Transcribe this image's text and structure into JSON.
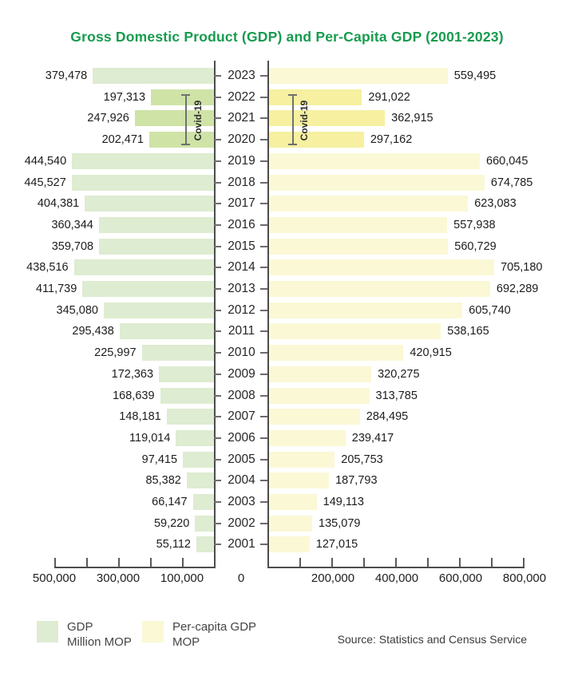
{
  "title": {
    "text": "Gross Domestic Product (GDP) and Per-Capita GDP (2001-2023)",
    "color": "#179b4e"
  },
  "chart_data": {
    "type": "bar",
    "layout_hint": "butterfly / diverging horizontal bars, years on central axis, no grid",
    "categories": [
      2023,
      2022,
      2021,
      2020,
      2019,
      2018,
      2017,
      2016,
      2015,
      2014,
      2013,
      2012,
      2011,
      2010,
      2009,
      2008,
      2007,
      2006,
      2005,
      2004,
      2003,
      2002,
      2001
    ],
    "series": [
      {
        "name": "GDP",
        "unit": "Million MOP",
        "side": "left",
        "color": "#deecd1",
        "covid_color": "#cfe3a7",
        "values": [
          379478,
          197313,
          247926,
          202471,
          444540,
          445527,
          404381,
          360344,
          359708,
          438516,
          411739,
          345080,
          295438,
          225997,
          172363,
          168639,
          148181,
          119014,
          97415,
          85382,
          66147,
          59220,
          55112
        ]
      },
      {
        "name": "Per-capita GDP",
        "unit": "MOP",
        "side": "right",
        "color": "#fbf8d6",
        "covid_color": "#f6f0a0",
        "values": [
          559495,
          291022,
          362915,
          297162,
          660045,
          674785,
          623083,
          557938,
          560729,
          705180,
          692289,
          605740,
          538165,
          420915,
          320275,
          313785,
          284495,
          239417,
          205753,
          187793,
          149113,
          135079,
          127015
        ]
      }
    ],
    "covid_years": [
      2022,
      2021,
      2020
    ],
    "covid_label": "Covid-19",
    "left_axis": {
      "max": 500000,
      "tick_step": 100000,
      "labeled_ticks": [
        500000,
        300000,
        100000
      ],
      "tick_labels": [
        "500,000",
        "300,000",
        "100,000"
      ]
    },
    "right_axis": {
      "max": 800000,
      "tick_step": 100000,
      "labeled_ticks": [
        200000,
        400000,
        600000,
        800000
      ],
      "tick_labels": [
        "200,000",
        "400,000",
        "600,000",
        "800,000"
      ]
    },
    "zero_label": "0"
  },
  "legend": [
    {
      "label": "GDP",
      "sublabel": "Million MOP",
      "swatch_color": "#deecd1"
    },
    {
      "label": "Per-capita GDP",
      "sublabel": "MOP",
      "swatch_color": "#fbf8d6"
    }
  ],
  "source": "Source: Statistics and Census Service"
}
